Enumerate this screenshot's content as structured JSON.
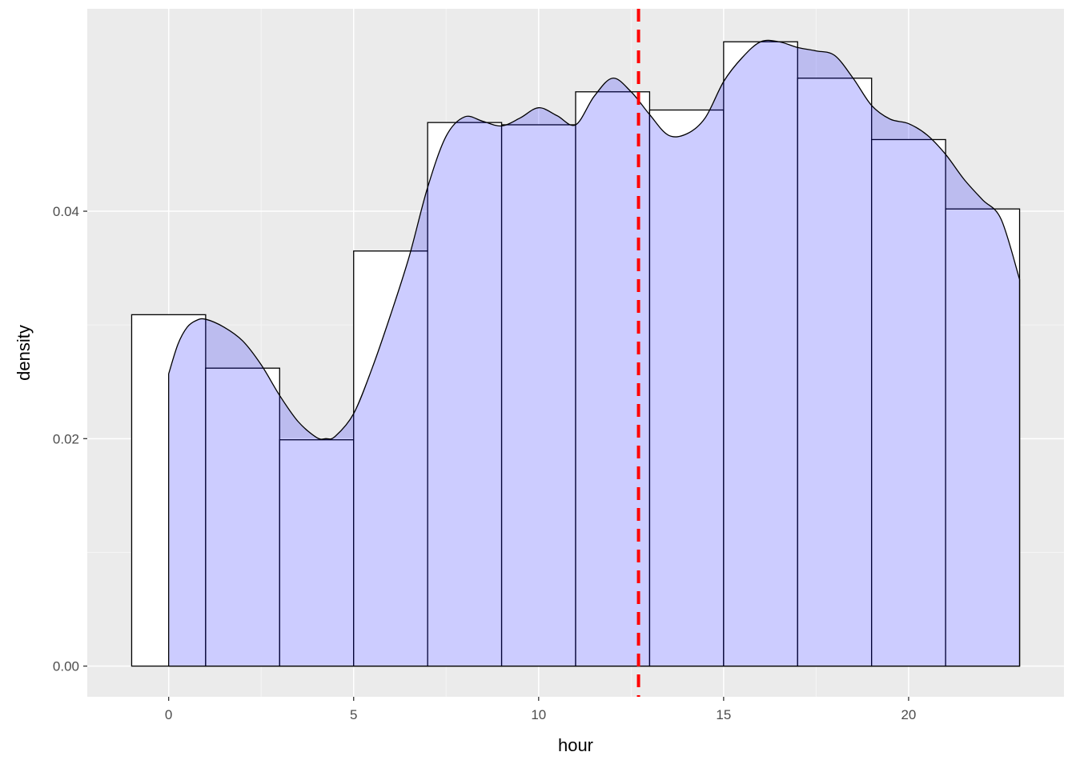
{
  "chart_data": {
    "type": "histogram",
    "title": "",
    "xlabel": "hour",
    "ylabel": "density",
    "xlim": [
      -2.2,
      24.2
    ],
    "ylim": [
      -0.0027,
      0.0578
    ],
    "x_ticks": [
      0,
      5,
      10,
      15,
      20
    ],
    "x_tick_labels": [
      "0",
      "5",
      "10",
      "15",
      "20"
    ],
    "y_ticks": [
      0.0,
      0.02,
      0.04
    ],
    "y_tick_labels": [
      "0.00",
      "0.02",
      "0.04"
    ],
    "grid": true,
    "histogram": {
      "bin_edges": [
        -1,
        1,
        3,
        5,
        7,
        9,
        11,
        13,
        15,
        17,
        19,
        21,
        23
      ],
      "densities": [
        0.0309,
        0.0262,
        0.0199,
        0.0365,
        0.0478,
        0.0476,
        0.0505,
        0.0489,
        0.0549,
        0.0517,
        0.0463,
        0.0402
      ],
      "fill": "#ffffff",
      "stroke": "#000000"
    },
    "density_curve": {
      "fill": "#0000ff",
      "fill_opacity": 0.2,
      "stroke": "#000000",
      "x": [
        0,
        0.25,
        0.5,
        0.75,
        1,
        1.5,
        2,
        2.5,
        3,
        3.5,
        4,
        4.25,
        4.5,
        5,
        5.5,
        6,
        6.5,
        7,
        7.5,
        8,
        8.5,
        9,
        9.5,
        10,
        10.5,
        11,
        11.5,
        12,
        12.5,
        13,
        13.5,
        14,
        14.5,
        15,
        15.5,
        16,
        16.5,
        17,
        17.5,
        18,
        18.5,
        19,
        19.5,
        20,
        20.5,
        21,
        21.5,
        22,
        22.5,
        23
      ],
      "y": [
        0.0257,
        0.0283,
        0.0298,
        0.0304,
        0.0305,
        0.0298,
        0.0286,
        0.0265,
        0.0238,
        0.0215,
        0.0201,
        0.02,
        0.0202,
        0.0222,
        0.0262,
        0.0309,
        0.036,
        0.0421,
        0.0466,
        0.0483,
        0.0479,
        0.0475,
        0.0482,
        0.0491,
        0.0484,
        0.0476,
        0.0501,
        0.0517,
        0.0505,
        0.0485,
        0.0467,
        0.0468,
        0.0482,
        0.0514,
        0.0535,
        0.0549,
        0.0549,
        0.0544,
        0.0541,
        0.0537,
        0.0517,
        0.0493,
        0.0481,
        0.0477,
        0.0467,
        0.045,
        0.0428,
        0.041,
        0.0393,
        0.034
      ]
    },
    "vline": {
      "x": 12.7,
      "color": "#ff0000",
      "style": "dashed"
    },
    "colors": {
      "panel_background": "#ebebeb",
      "grid_major": "#ffffff",
      "grid_minor": "#f5f5f5",
      "tick_text": "#4d4d4d"
    }
  }
}
